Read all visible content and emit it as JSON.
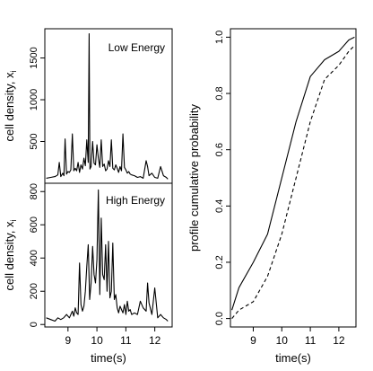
{
  "chart_data": [
    {
      "type": "line",
      "panel": "top-left",
      "annotation": "Low Energy",
      "ylabel": "cell density, x",
      "ylabel_subscript": "i",
      "xlim": [
        8.2,
        12.6
      ],
      "ylim": [
        0,
        1850
      ],
      "yticks": [
        500,
        1000,
        1500
      ],
      "series": [
        {
          "x": [
            8.25,
            8.4,
            8.55,
            8.65,
            8.7,
            8.75,
            8.82,
            8.86,
            8.9,
            8.95,
            9.0,
            9.05,
            9.1,
            9.15,
            9.2,
            9.25,
            9.3,
            9.35,
            9.4,
            9.45,
            9.5,
            9.55,
            9.6,
            9.65,
            9.7,
            9.73,
            9.76,
            9.8,
            9.85,
            9.9,
            9.95,
            10.0,
            10.05,
            10.1,
            10.15,
            10.2,
            10.25,
            10.3,
            10.35,
            10.4,
            10.45,
            10.5,
            10.55,
            10.6,
            10.65,
            10.7,
            10.75,
            10.8,
            10.85,
            10.9,
            10.95,
            11.0,
            11.05,
            11.1,
            11.15,
            11.2,
            11.3,
            11.4,
            11.5,
            11.6,
            11.7,
            11.75,
            11.8,
            11.9,
            12.0,
            12.1,
            12.2,
            12.3,
            12.4,
            12.45
          ],
          "y": [
            60,
            70,
            80,
            100,
            250,
            80,
            120,
            90,
            530,
            110,
            140,
            130,
            160,
            590,
            150,
            180,
            150,
            250,
            130,
            220,
            170,
            300,
            210,
            520,
            250,
            1790,
            170,
            200,
            500,
            240,
            220,
            460,
            300,
            190,
            520,
            200,
            230,
            150,
            170,
            270,
            200,
            520,
            180,
            160,
            220,
            180,
            130,
            200,
            150,
            590,
            190,
            160,
            120,
            140,
            110,
            100,
            90,
            70,
            80,
            60,
            270,
            200,
            90,
            120,
            70,
            60,
            200,
            90,
            70,
            50
          ]
        }
      ]
    },
    {
      "type": "line",
      "panel": "bottom-left",
      "annotation": "High Energy",
      "ylabel": "cell density, x",
      "ylabel_subscript": "i",
      "xlabel": "time(s)",
      "xlim": [
        8.2,
        12.6
      ],
      "ylim": [
        -15,
        850
      ],
      "yticks": [
        0,
        200,
        400,
        600,
        800
      ],
      "xticks": [
        9,
        10,
        11,
        12
      ],
      "series": [
        {
          "x": [
            8.25,
            8.4,
            8.55,
            8.65,
            8.75,
            8.85,
            8.95,
            9.05,
            9.15,
            9.2,
            9.25,
            9.3,
            9.35,
            9.4,
            9.45,
            9.5,
            9.55,
            9.6,
            9.65,
            9.7,
            9.75,
            9.8,
            9.85,
            9.9,
            9.95,
            10.0,
            10.05,
            10.1,
            10.15,
            10.2,
            10.25,
            10.3,
            10.35,
            10.4,
            10.45,
            10.5,
            10.55,
            10.6,
            10.65,
            10.7,
            10.75,
            10.8,
            10.85,
            10.9,
            10.95,
            11.0,
            11.05,
            11.1,
            11.15,
            11.2,
            11.3,
            11.4,
            11.5,
            11.6,
            11.7,
            11.75,
            11.8,
            11.9,
            12.0,
            12.1,
            12.2,
            12.3,
            12.4,
            12.45
          ],
          "y": [
            40,
            30,
            20,
            40,
            30,
            40,
            60,
            40,
            80,
            50,
            100,
            70,
            60,
            370,
            120,
            80,
            110,
            200,
            350,
            480,
            150,
            250,
            470,
            300,
            250,
            390,
            810,
            180,
            640,
            300,
            270,
            480,
            200,
            500,
            160,
            200,
            490,
            150,
            180,
            100,
            70,
            110,
            90,
            70,
            120,
            60,
            140,
            80,
            90,
            60,
            70,
            60,
            140,
            100,
            80,
            250,
            130,
            60,
            220,
            40,
            60,
            40,
            30,
            20
          ]
        }
      ]
    },
    {
      "type": "line",
      "panel": "right",
      "ylabel": "profile cumulative probability",
      "xlabel": "time(s)",
      "xlim": [
        8.2,
        12.6
      ],
      "ylim": [
        -0.03,
        1.03
      ],
      "yticks": [
        0.0,
        0.2,
        0.4,
        0.6,
        0.8,
        1.0
      ],
      "xticks": [
        9,
        10,
        11,
        12
      ],
      "series": [
        {
          "style": "solid",
          "x": [
            8.25,
            8.5,
            9.0,
            9.5,
            10.0,
            10.5,
            11.0,
            11.5,
            12.0,
            12.35,
            12.55
          ],
          "y": [
            0.03,
            0.11,
            0.2,
            0.3,
            0.5,
            0.7,
            0.86,
            0.92,
            0.95,
            0.99,
            1.0
          ]
        },
        {
          "style": "dashed",
          "x": [
            8.25,
            8.5,
            9.0,
            9.5,
            10.0,
            10.5,
            11.0,
            11.5,
            12.0,
            12.35,
            12.55
          ],
          "y": [
            0.0,
            0.03,
            0.06,
            0.15,
            0.3,
            0.5,
            0.7,
            0.85,
            0.9,
            0.95,
            0.97
          ]
        }
      ]
    }
  ]
}
